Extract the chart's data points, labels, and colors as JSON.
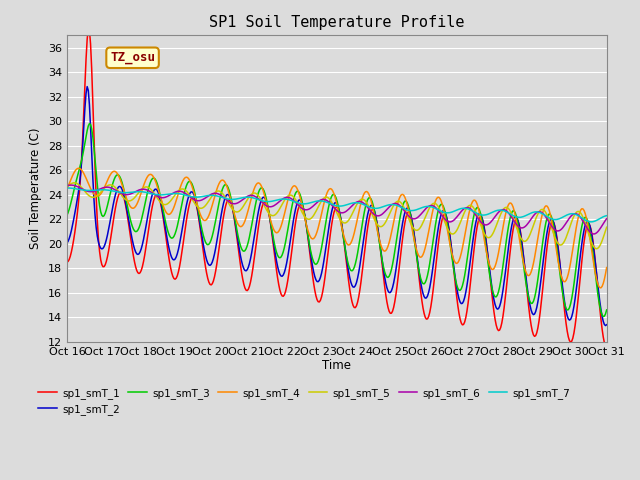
{
  "title": "SP1 Soil Temperature Profile",
  "xlabel": "Time",
  "ylabel": "Soil Temperature (C)",
  "ylim": [
    12,
    37
  ],
  "yticks": [
    12,
    14,
    16,
    18,
    20,
    22,
    24,
    26,
    28,
    30,
    32,
    34,
    36
  ],
  "xtick_labels": [
    "Oct 16",
    "Oct 17",
    "Oct 18",
    "Oct 19",
    "Oct 20",
    "Oct 21",
    "Oct 22",
    "Oct 23",
    "Oct 24",
    "Oct 25",
    "Oct 26",
    "Oct 27",
    "Oct 28",
    "Oct 29",
    "Oct 30",
    "Oct 31"
  ],
  "series_colors": [
    "#ff0000",
    "#0000cc",
    "#00cc00",
    "#ff8800",
    "#cccc00",
    "#aa00aa",
    "#00cccc"
  ],
  "series_names": [
    "sp1_smT_1",
    "sp1_smT_2",
    "sp1_smT_3",
    "sp1_smT_4",
    "sp1_smT_5",
    "sp1_smT_6",
    "sp1_smT_7"
  ],
  "annotation_text": "TZ_osu",
  "background_color": "#dcdcdc",
  "grid_color": "#ffffff",
  "title_fontsize": 11,
  "n_points": 480
}
